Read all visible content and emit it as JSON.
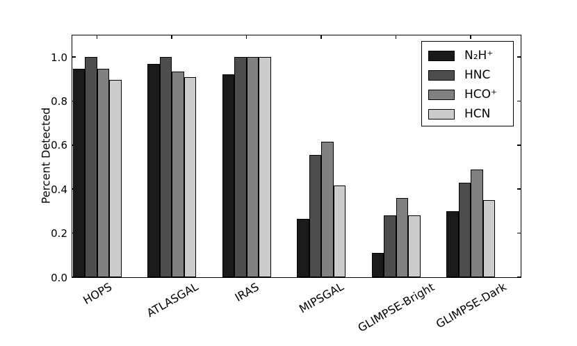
{
  "figure": {
    "background": "#ffffff",
    "axis_color": "#000000"
  },
  "chart_data": {
    "type": "bar",
    "title": "",
    "xlabel": "",
    "ylabel": "Percent Detected",
    "categories": [
      "HOPS",
      "ATLASGAL",
      "IRAS",
      "MIPSGAL",
      "GLIMPSE-Bright",
      "GLIMPSE-Dark"
    ],
    "series": [
      {
        "name": "N₂H⁺",
        "color": "#1a1a1a",
        "values": [
          0.945,
          0.97,
          0.92,
          0.265,
          0.11,
          0.3
        ]
      },
      {
        "name": "HNC",
        "color": "#4d4d4d",
        "values": [
          1.0,
          1.0,
          1.0,
          0.555,
          0.28,
          0.43
        ]
      },
      {
        "name": "HCO⁺",
        "color": "#808080",
        "values": [
          0.945,
          0.935,
          1.0,
          0.615,
          0.36,
          0.49
        ]
      },
      {
        "name": "HCN",
        "color": "#cccccc",
        "values": [
          0.895,
          0.91,
          1.0,
          0.415,
          0.28,
          0.35
        ]
      }
    ],
    "ytick_labels": [
      "0.0",
      "0.2",
      "0.4",
      "0.6",
      "0.8",
      "1.0"
    ],
    "ytick_values": [
      0.0,
      0.2,
      0.4,
      0.6,
      0.8,
      1.0
    ],
    "ylim": [
      0,
      1.098
    ],
    "xtick_rotation_deg": 30,
    "grid": false,
    "legend": {
      "position": "upper right",
      "entries": [
        "N₂H⁺",
        "HNC",
        "HCO⁺",
        "HCN"
      ]
    }
  }
}
